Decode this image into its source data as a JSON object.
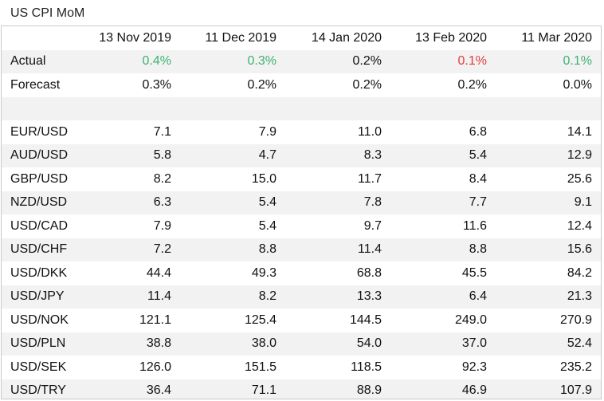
{
  "title": "US CPI MoM",
  "chart_data": {
    "type": "table",
    "title": "US CPI MoM",
    "columns": [
      "13 Nov 2019",
      "11 Dec 2019",
      "14 Jan 2020",
      "13 Feb 2020",
      "11 Mar 2020"
    ],
    "actual": {
      "label": "Actual",
      "values": [
        "0.4%",
        "0.3%",
        "0.2%",
        "0.1%",
        "0.1%"
      ],
      "tone": [
        "pos",
        "pos",
        "neu",
        "neg",
        "pos"
      ]
    },
    "forecast": {
      "label": "Forecast",
      "values": [
        "0.3%",
        "0.2%",
        "0.2%",
        "0.2%",
        "0.0%"
      ]
    },
    "rows": [
      {
        "label": "EUR/USD",
        "values": [
          "7.1",
          "7.9",
          "11.0",
          "6.8",
          "14.1"
        ]
      },
      {
        "label": "AUD/USD",
        "values": [
          "5.8",
          "4.7",
          "8.3",
          "5.4",
          "12.9"
        ]
      },
      {
        "label": "GBP/USD",
        "values": [
          "8.2",
          "15.0",
          "11.7",
          "8.4",
          "25.6"
        ]
      },
      {
        "label": "NZD/USD",
        "values": [
          "6.3",
          "5.4",
          "7.8",
          "7.7",
          "9.1"
        ]
      },
      {
        "label": "USD/CAD",
        "values": [
          "7.9",
          "5.4",
          "9.7",
          "11.6",
          "12.4"
        ]
      },
      {
        "label": "USD/CHF",
        "values": [
          "7.2",
          "8.8",
          "11.4",
          "8.8",
          "15.6"
        ]
      },
      {
        "label": "USD/DKK",
        "values": [
          "44.4",
          "49.3",
          "68.8",
          "45.5",
          "84.2"
        ]
      },
      {
        "label": "USD/JPY",
        "values": [
          "11.4",
          "8.2",
          "13.3",
          "6.4",
          "21.3"
        ]
      },
      {
        "label": "USD/NOK",
        "values": [
          "121.1",
          "125.4",
          "144.5",
          "249.0",
          "270.9"
        ]
      },
      {
        "label": "USD/PLN",
        "values": [
          "38.8",
          "38.0",
          "54.0",
          "37.0",
          "52.4"
        ]
      },
      {
        "label": "USD/SEK",
        "values": [
          "126.0",
          "151.5",
          "118.5",
          "92.3",
          "235.2"
        ]
      },
      {
        "label": "USD/TRY",
        "values": [
          "36.4",
          "71.1",
          "88.9",
          "46.9",
          "107.9"
        ]
      }
    ],
    "colors": {
      "positive": "#3cb371",
      "negative": "#e03c3c",
      "shade": "#f2f2f2",
      "border": "#c9c9c9"
    }
  }
}
